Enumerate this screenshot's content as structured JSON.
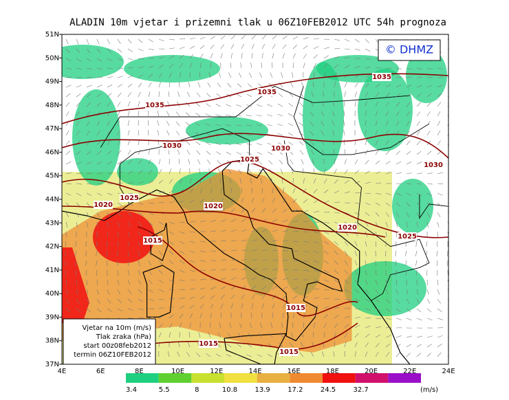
{
  "title": "ALADIN 10m vjetar i prizemni tlak u 06Z10FEB2012 UTC 54h prognoza",
  "copyright": "© DHMZ",
  "latitude_labels": [
    "51N",
    "50N",
    "49N",
    "48N",
    "47N",
    "46N",
    "45N",
    "44N",
    "43N",
    "42N",
    "41N",
    "40N",
    "39N",
    "38N",
    "37N"
  ],
  "longitude_labels": [
    "4E",
    "6E",
    "8E",
    "10E",
    "12E",
    "14E",
    "16E",
    "18E",
    "20E",
    "22E",
    "24E"
  ],
  "isobar_labels": [
    "1035",
    "1035",
    "1035",
    "1030",
    "1030",
    "1030",
    "1025",
    "1025",
    "1020",
    "1020",
    "1020",
    "1025",
    "1015",
    "1015",
    "1015",
    "1015"
  ],
  "info_box": [
    "Vjetar na 10m (m/s)",
    "Tlak zraka (hPa)",
    "start 00z08feb2012",
    "termin 06Z10FEB2012"
  ],
  "color_scale": {
    "labels": [
      "3.4",
      "5.5",
      "8",
      "10.8",
      "13.9",
      "17.2",
      "24.5",
      "32.7"
    ],
    "unit": "(m/s)",
    "colors": [
      "#1fcf80",
      "#5fd030",
      "#c8e030",
      "#f0e040",
      "#e8b040",
      "#f08a30",
      "#f01010",
      "#d0106a",
      "#9a10c8"
    ]
  }
}
